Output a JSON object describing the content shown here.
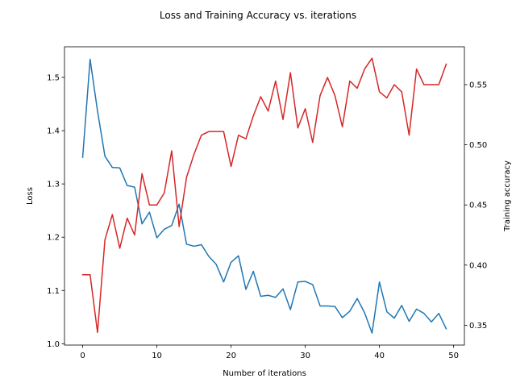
{
  "chart_data": {
    "type": "line",
    "title": "Loss and Training Accuracy vs. iterations",
    "xlabel": "Number of iterations",
    "ylabel": "Loss",
    "y2label": "Training accuracy",
    "xlim": [
      -2.45,
      51.45
    ],
    "ylim": [
      0.9975,
      1.5575
    ],
    "y2lim": [
      0.3335,
      0.5815
    ],
    "x_ticks": [
      0,
      10,
      20,
      30,
      40,
      50
    ],
    "y_ticks": [
      1.0,
      1.1,
      1.2,
      1.3,
      1.4,
      1.5
    ],
    "y2_ticks": [
      0.35,
      0.4,
      0.45,
      0.5,
      0.55
    ],
    "grid": false,
    "x": [
      0,
      1,
      2,
      3,
      4,
      5,
      6,
      7,
      8,
      9,
      10,
      11,
      12,
      13,
      14,
      15,
      16,
      17,
      18,
      19,
      20,
      21,
      22,
      23,
      24,
      25,
      26,
      27,
      28,
      29,
      30,
      31,
      32,
      33,
      34,
      35,
      36,
      37,
      38,
      39,
      40,
      41,
      42,
      43,
      44,
      45,
      46,
      47,
      48,
      49
    ],
    "series": [
      {
        "axis": "left",
        "color": "#1f77b4",
        "values": [
          1.35,
          1.534,
          1.437,
          1.352,
          1.331,
          1.33,
          1.297,
          1.294,
          1.225,
          1.247,
          1.199,
          1.215,
          1.222,
          1.262,
          1.187,
          1.183,
          1.186,
          1.164,
          1.149,
          1.116,
          1.153,
          1.165,
          1.102,
          1.136,
          1.089,
          1.091,
          1.087,
          1.103,
          1.064,
          1.116,
          1.117,
          1.111,
          1.071,
          1.071,
          1.07,
          1.049,
          1.061,
          1.085,
          1.058,
          1.02,
          1.116,
          1.06,
          1.048,
          1.072,
          1.042,
          1.065,
          1.057,
          1.041,
          1.057,
          1.028
        ]
      },
      {
        "axis": "right",
        "color": "#d62728",
        "values": [
          0.392,
          0.392,
          0.344,
          0.421,
          0.442,
          0.414,
          0.439,
          0.425,
          0.476,
          0.45,
          0.45,
          0.46,
          0.495,
          0.432,
          0.473,
          0.492,
          0.508,
          0.511,
          0.511,
          0.511,
          0.482,
          0.508,
          0.505,
          0.524,
          0.54,
          0.528,
          0.553,
          0.521,
          0.56,
          0.514,
          0.53,
          0.502,
          0.541,
          0.556,
          0.541,
          0.515,
          0.553,
          0.547,
          0.563,
          0.572,
          0.544,
          0.539,
          0.55,
          0.544,
          0.508,
          0.563,
          0.55,
          0.55,
          0.55,
          0.567
        ]
      }
    ]
  }
}
